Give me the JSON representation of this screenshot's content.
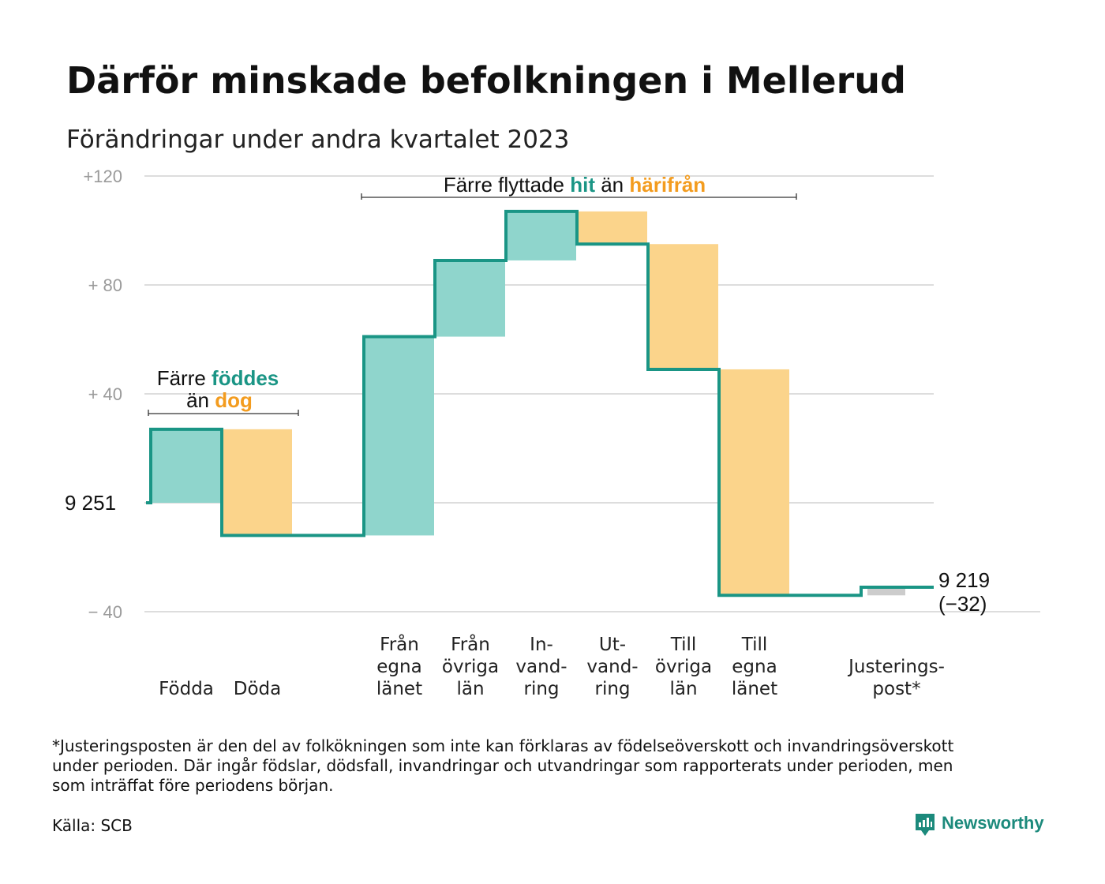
{
  "title": "Därför minskade befolkningen i Mellerud",
  "subtitle": "Förändringar under andra kvartalet 2023",
  "colors": {
    "increase": "#8fd5cc",
    "decrease": "#fbd48b",
    "adjustment": "#cccccc",
    "line": "#1a9585",
    "teal_text": "#1a9585",
    "orange_text": "#f39c1f",
    "grid": "#dddddd"
  },
  "annotations": {
    "births": {
      "line1_prefix": "Färre ",
      "line1_highlight": "föddes",
      "line2_prefix": "än ",
      "line2_highlight": "dog"
    },
    "moves": {
      "prefix": "Färre flyttade ",
      "highlight1": "hit",
      "middle": " än ",
      "highlight2": "härifrån"
    }
  },
  "start_label": "9 251",
  "end_label": {
    "value": "9 219",
    "change": "(−32)"
  },
  "footnote": [
    "*Justeringsposten är den del av folkökningen som inte kan förklaras av födelseöverskott och invandringsöverskott",
    "under perioden. Där ingår födslar, dödsfall, invandringar och utvandringar som rapporterats under perioden, men",
    "som inträffat före periodens början."
  ],
  "source": "Källa: SCB",
  "brand": "Newsworthy",
  "chart_data": {
    "type": "bar",
    "subtype": "waterfall",
    "start_value": 9251,
    "end_value": 9219,
    "y_ticks": [
      {
        "value": 120,
        "label": "+120"
      },
      {
        "value": 80,
        "label": "+  80"
      },
      {
        "value": 40,
        "label": "+  40"
      },
      {
        "value": -40,
        "label": "−  40"
      }
    ],
    "ylim": [
      -40,
      120
    ],
    "categories": [
      {
        "lines": [
          "Födda"
        ],
        "change": 27,
        "kind": "increase"
      },
      {
        "lines": [
          "Döda"
        ],
        "change": -39,
        "kind": "decrease"
      },
      {
        "lines": [],
        "change": 0,
        "kind": "gap"
      },
      {
        "lines": [
          "Från",
          "egna",
          "länet"
        ],
        "change": 73,
        "kind": "increase"
      },
      {
        "lines": [
          "Från",
          "övriga",
          "län"
        ],
        "change": 28,
        "kind": "increase"
      },
      {
        "lines": [
          "In-",
          "vand-",
          "ring"
        ],
        "change": 18,
        "kind": "increase"
      },
      {
        "lines": [
          "Ut-",
          "vand-",
          "ring"
        ],
        "change": -12,
        "kind": "decrease"
      },
      {
        "lines": [
          "Till",
          "övriga",
          "län"
        ],
        "change": -46,
        "kind": "decrease"
      },
      {
        "lines": [
          "Till",
          "egna",
          "länet"
        ],
        "change": -83,
        "kind": "decrease"
      },
      {
        "lines": [],
        "change": 0,
        "kind": "gap"
      },
      {
        "lines": [
          "Justerings-",
          "post*"
        ],
        "change": 3,
        "kind": "adjustment"
      }
    ]
  }
}
